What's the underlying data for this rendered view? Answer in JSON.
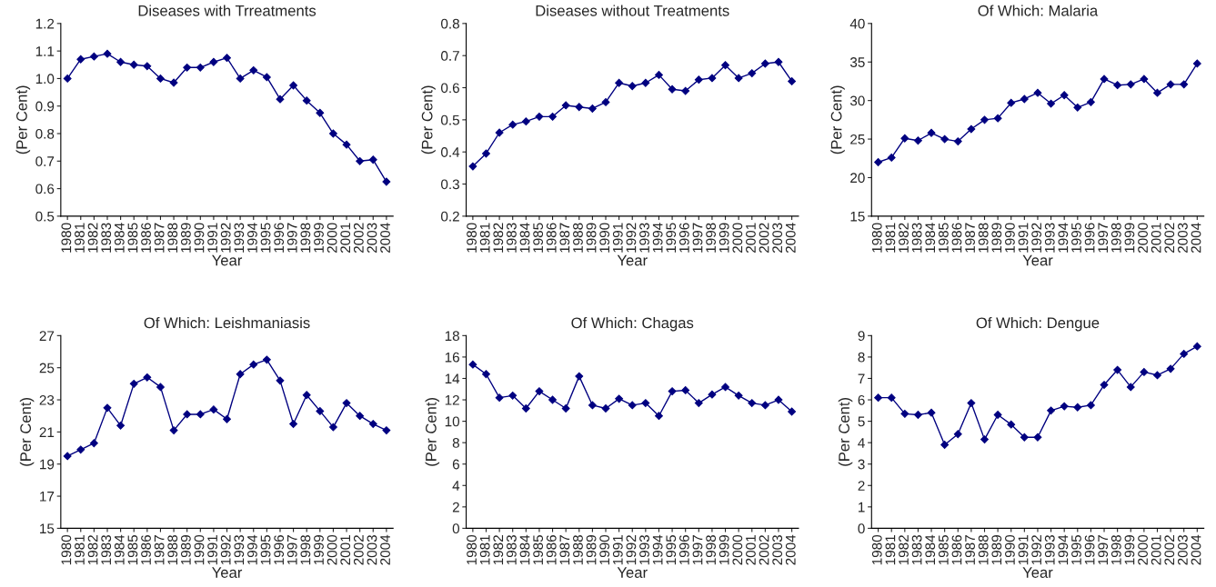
{
  "chart_data": [
    {
      "type": "line",
      "title": "Diseases with Trreatments",
      "xlabel": "Year",
      "ylabel": "(Per Cent)",
      "categories": [
        "1980",
        "1981",
        "1982",
        "1983",
        "1984",
        "1985",
        "1986",
        "1987",
        "1988",
        "1989",
        "1990",
        "1991",
        "1992",
        "1993",
        "1994",
        "1995",
        "1996",
        "1997",
        "1998",
        "1999",
        "2000",
        "2001",
        "2002",
        "2003",
        "2004"
      ],
      "series": [
        {
          "color": "#000080",
          "values": [
            1.0,
            1.07,
            1.08,
            1.09,
            1.06,
            1.05,
            1.045,
            1.0,
            0.985,
            1.04,
            1.04,
            1.06,
            1.075,
            1.0,
            1.03,
            1.005,
            0.925,
            0.975,
            0.92,
            0.875,
            0.8,
            0.76,
            0.7,
            0.705,
            0.625
          ]
        }
      ],
      "ylim": [
        0.5,
        1.2
      ],
      "yticks": [
        {
          "value": 0.5,
          "label": "0.5"
        },
        {
          "value": 0.6,
          "label": "0.6"
        },
        {
          "value": 0.7,
          "label": "0.7"
        },
        {
          "value": 0.8,
          "label": "0.8"
        },
        {
          "value": 0.9,
          "label": "0.9"
        },
        {
          "value": 1.0,
          "label": "1.0"
        },
        {
          "value": 1.1,
          "label": "1.1"
        },
        {
          "value": 1.2,
          "label": "1.2"
        }
      ],
      "marker": "diamond",
      "grid": false
    },
    {
      "type": "line",
      "title": "Diseases without Treatments",
      "xlabel": "Year",
      "ylabel": "(Per Cent)",
      "categories": [
        "1980",
        "1981",
        "1982",
        "1983",
        "1984",
        "1985",
        "1986",
        "1987",
        "1988",
        "1989",
        "1990",
        "1991",
        "1992",
        "1993",
        "1994",
        "1995",
        "1996",
        "1997",
        "1998",
        "1999",
        "2000",
        "2001",
        "2002",
        "2003",
        "2004"
      ],
      "series": [
        {
          "color": "#000080",
          "values": [
            0.355,
            0.395,
            0.46,
            0.485,
            0.495,
            0.51,
            0.51,
            0.545,
            0.54,
            0.535,
            0.555,
            0.615,
            0.605,
            0.615,
            0.64,
            0.595,
            0.59,
            0.625,
            0.63,
            0.67,
            0.63,
            0.645,
            0.675,
            0.68,
            0.62
          ]
        }
      ],
      "ylim": [
        0.2,
        0.8
      ],
      "yticks": [
        0.2,
        0.3,
        0.4,
        0.5,
        0.6,
        0.7,
        0.8
      ],
      "marker": "diamond",
      "grid": false
    },
    {
      "type": "line",
      "title": "Of Which: Malaria",
      "xlabel": "Year",
      "ylabel": "(Per Cent)",
      "categories": [
        "1980",
        "1981",
        "1982",
        "1983",
        "1984",
        "1985",
        "1986",
        "1987",
        "1988",
        "1989",
        "1990",
        "1991",
        "1992",
        "1993",
        "1994",
        "1995",
        "1996",
        "1997",
        "1998",
        "1999",
        "2000",
        "2001",
        "2002",
        "2003",
        "2004"
      ],
      "series": [
        {
          "color": "#000080",
          "values": [
            22.0,
            22.6,
            25.1,
            24.8,
            25.8,
            25.0,
            24.7,
            26.3,
            27.5,
            27.7,
            29.7,
            30.2,
            31.0,
            29.6,
            30.7,
            29.1,
            29.8,
            32.8,
            32.0,
            32.1,
            32.8,
            31.0,
            32.1,
            32.1,
            34.8
          ]
        }
      ],
      "ylim": [
        15,
        40
      ],
      "yticks": [
        15,
        20,
        25,
        30,
        35,
        40
      ],
      "marker": "diamond",
      "grid": false
    },
    {
      "type": "line",
      "title": "Of Which: Leishmaniasis",
      "xlabel": "Year",
      "ylabel": "(Per Cent)",
      "categories": [
        "1980",
        "1981",
        "1982",
        "1983",
        "1984",
        "1985",
        "1986",
        "1987",
        "1988",
        "1989",
        "1990",
        "1991",
        "1992",
        "1993",
        "1994",
        "1995",
        "1996",
        "1997",
        "1998",
        "1999",
        "2000",
        "2001",
        "2002",
        "2003",
        "2004"
      ],
      "series": [
        {
          "color": "#000080",
          "values": [
            19.5,
            19.9,
            20.3,
            22.5,
            21.4,
            24.0,
            24.4,
            23.8,
            21.1,
            22.1,
            22.1,
            22.4,
            21.8,
            24.6,
            25.2,
            25.5,
            24.2,
            21.5,
            23.3,
            22.3,
            21.3,
            22.8,
            22.0,
            21.5,
            21.1
          ]
        }
      ],
      "ylim": [
        15,
        27
      ],
      "yticks": [
        15,
        17,
        19,
        21,
        23,
        25,
        27
      ],
      "marker": "diamond",
      "grid": false
    },
    {
      "type": "line",
      "title": "Of Which: Chagas",
      "xlabel": "Year",
      "ylabel": "(Per Cent)",
      "categories": [
        "1980",
        "1981",
        "1982",
        "1983",
        "1984",
        "1985",
        "1986",
        "1987",
        "1988",
        "1989",
        "1990",
        "1991",
        "1992",
        "1993",
        "1994",
        "1995",
        "1996",
        "1997",
        "1998",
        "1999",
        "2000",
        "2001",
        "2002",
        "2003",
        "2004"
      ],
      "series": [
        {
          "color": "#000080",
          "values": [
            15.3,
            14.4,
            12.2,
            12.4,
            11.2,
            12.8,
            12.0,
            11.2,
            14.2,
            11.5,
            11.2,
            12.1,
            11.5,
            11.7,
            10.5,
            12.8,
            12.9,
            11.7,
            12.5,
            13.2,
            12.4,
            11.7,
            11.5,
            12.0,
            10.9
          ]
        }
      ],
      "ylim": [
        0,
        18
      ],
      "yticks": [
        0,
        2,
        4,
        6,
        8,
        10,
        12,
        14,
        16,
        18
      ],
      "marker": "diamond",
      "grid": false
    },
    {
      "type": "line",
      "title": "Of Which: Dengue",
      "xlabel": "Year",
      "ylabel": "(Per Cent)",
      "categories": [
        "1980",
        "1981",
        "1982",
        "1983",
        "1984",
        "1985",
        "1986",
        "1987",
        "1988",
        "1989",
        "1990",
        "1991",
        "1992",
        "1993",
        "1994",
        "1995",
        "1996",
        "1997",
        "1998",
        "1999",
        "2000",
        "2001",
        "2002",
        "2003",
        "2004"
      ],
      "series": [
        {
          "color": "#000080",
          "values": [
            6.1,
            6.1,
            5.35,
            5.3,
            5.4,
            3.9,
            4.4,
            5.85,
            4.15,
            5.3,
            4.85,
            4.25,
            4.25,
            5.5,
            5.7,
            5.65,
            5.75,
            6.7,
            7.4,
            6.6,
            7.3,
            7.15,
            7.45,
            8.15,
            8.5
          ]
        }
      ],
      "ylim": [
        0,
        9
      ],
      "yticks": [
        0,
        1,
        2,
        3,
        4,
        5,
        6,
        7,
        8,
        9
      ],
      "marker": "diamond",
      "grid": false
    }
  ]
}
